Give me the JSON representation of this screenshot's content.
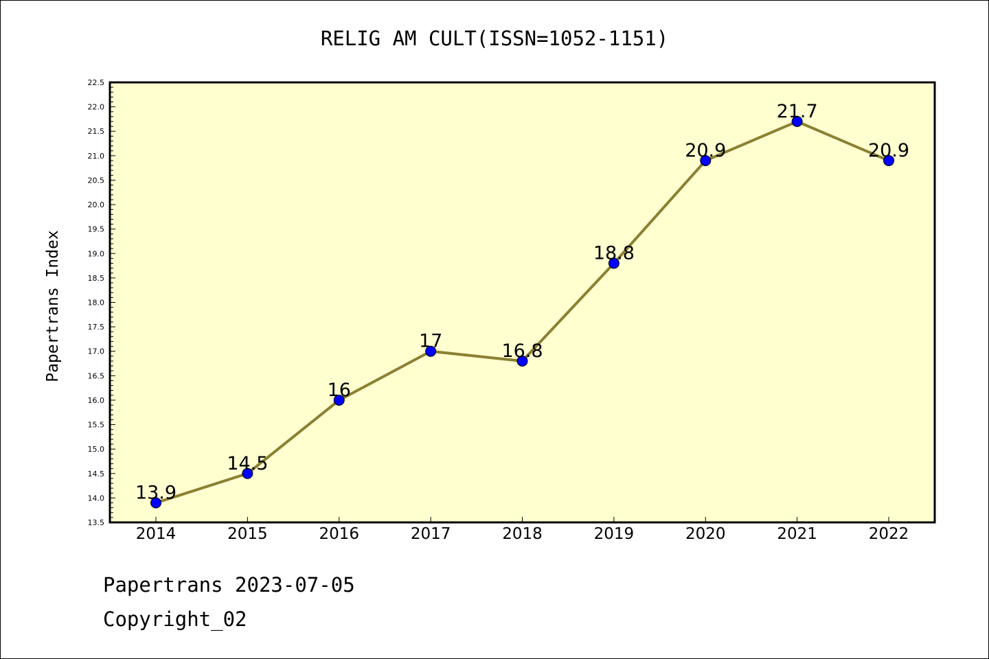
{
  "chart_data": {
    "type": "line",
    "title": "RELIG AM CULT(ISSN=1052-1151)",
    "xlabel": "",
    "ylabel": "Papertrans Index",
    "x": [
      "2014",
      "2015",
      "2016",
      "2017",
      "2018",
      "2019",
      "2020",
      "2021",
      "2022"
    ],
    "series": [
      {
        "values": [
          13.9,
          14.5,
          16,
          17,
          16.8,
          18.8,
          20.9,
          21.7,
          20.9
        ],
        "labels": [
          "13.9",
          "14.5",
          "16",
          "17",
          "16.8",
          "18.8",
          "20.9",
          "21.7",
          "20.9"
        ]
      }
    ],
    "ylim": [
      13.5,
      22.5
    ],
    "yticks": [
      "13.5",
      "14.0",
      "14.5",
      "15.0",
      "15.5",
      "16.0",
      "16.5",
      "17.0",
      "17.5",
      "18.0",
      "18.5",
      "19.0",
      "19.5",
      "20.0",
      "20.5",
      "21.0",
      "21.5",
      "22.0",
      "22.5"
    ],
    "grid": false,
    "colors": {
      "plot_bg": "#ffffd0",
      "line": "#8b8032",
      "marker": "#0000ff"
    }
  },
  "footer": {
    "line1": "Papertrans 2023-07-05",
    "line2": "Copyright_02"
  }
}
